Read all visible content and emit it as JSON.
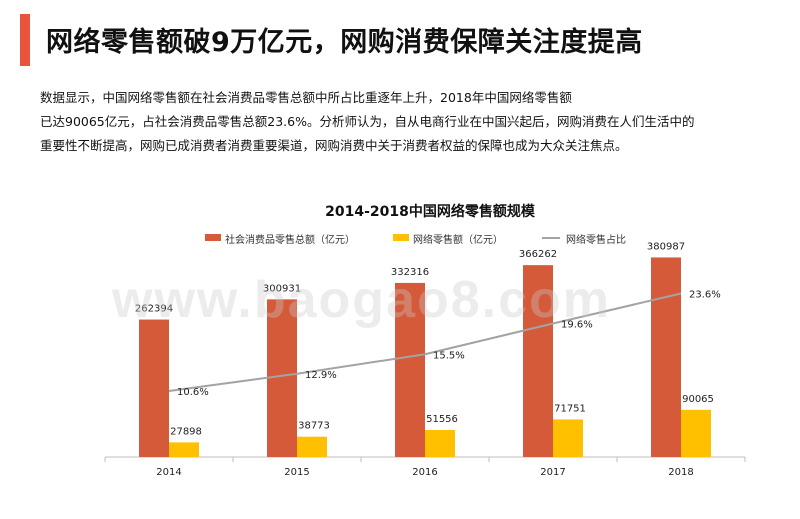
{
  "slide": {
    "title": "网络零售额破9万亿元，网购消费保障关注度提高",
    "intro_lines": [
      "数据显示，中国网络零售额在社会消费品零售总额中所占比重逐年上升，2018年中国网络零售额",
      "已达90065亿元，占社会消费品零售总额23.6%。分析师认为，自从电商行业在中国兴起后，网购消费在人们生活中的",
      "重要性不断提高，网购已成消费者消费重要渠道，网购消费中关于消费者权益的保障也成为大众关注焦点。"
    ],
    "watermark": "www.baogao8.com"
  },
  "colors": {
    "accent": "#e8543c",
    "retail_total": "#d45a3a",
    "online": "#ffc000",
    "share_line": "#a3a3a3"
  },
  "chart_data": {
    "type": "bar",
    "title": "2014-2018中国网络零售额规模",
    "categories": [
      "2014",
      "2015",
      "2016",
      "2017",
      "2018"
    ],
    "series": [
      {
        "name": "社会消费品零售总额（亿元）",
        "type": "bar",
        "values": [
          262394,
          300931,
          332316,
          366262,
          380987
        ]
      },
      {
        "name": "网络零售额（亿元）",
        "type": "bar",
        "values": [
          27898,
          38773,
          51556,
          71751,
          90065
        ]
      },
      {
        "name": "网络零售占比",
        "type": "line",
        "values": [
          10.6,
          12.9,
          15.5,
          19.6,
          23.6
        ],
        "labels": [
          "10.6%",
          "12.9%",
          "15.5%",
          "19.6%",
          "23.6%"
        ]
      }
    ],
    "legend_position": "top",
    "grid": false
  }
}
